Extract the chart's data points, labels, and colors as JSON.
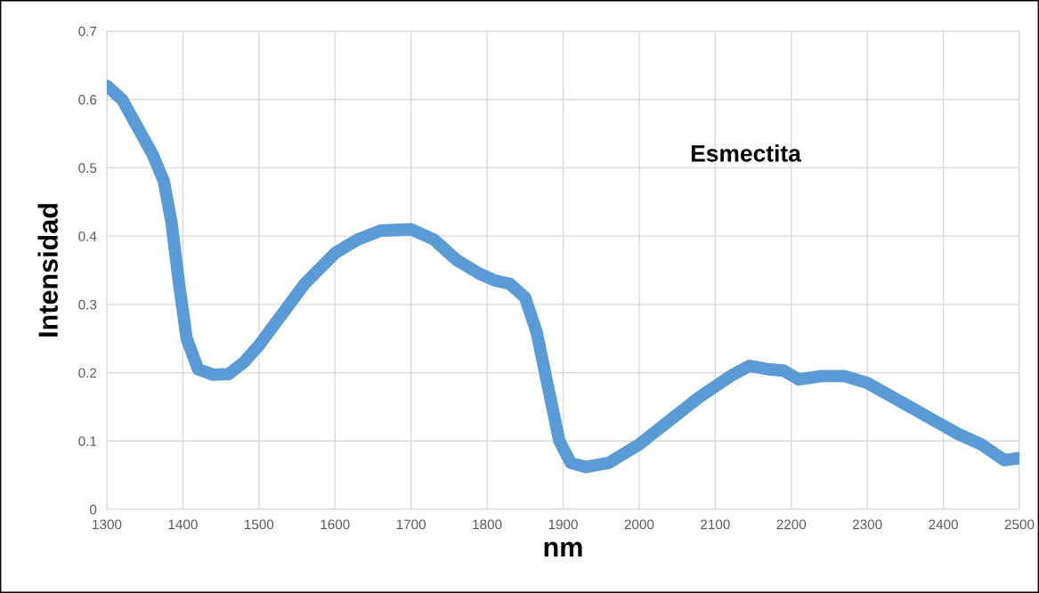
{
  "chart_data": {
    "type": "line",
    "xlabel": "nm",
    "ylabel": "Intensidad",
    "annotations": [
      "Esmectita"
    ],
    "x": [
      1300,
      1320,
      1340,
      1360,
      1375,
      1385,
      1395,
      1405,
      1420,
      1440,
      1460,
      1480,
      1500,
      1530,
      1560,
      1600,
      1630,
      1660,
      1700,
      1730,
      1760,
      1790,
      1810,
      1830,
      1850,
      1865,
      1880,
      1895,
      1910,
      1930,
      1960,
      2000,
      2040,
      2080,
      2120,
      2145,
      2170,
      2190,
      2210,
      2240,
      2270,
      2300,
      2340,
      2380,
      2420,
      2450,
      2480,
      2500
    ],
    "series": [
      {
        "color": "#5b9bd5",
        "values": [
          0.62,
          0.6,
          0.56,
          0.52,
          0.48,
          0.42,
          0.33,
          0.25,
          0.205,
          0.197,
          0.198,
          0.215,
          0.24,
          0.285,
          0.33,
          0.375,
          0.395,
          0.408,
          0.41,
          0.395,
          0.365,
          0.345,
          0.335,
          0.33,
          0.31,
          0.26,
          0.18,
          0.1,
          0.068,
          0.062,
          0.068,
          0.095,
          0.13,
          0.165,
          0.195,
          0.21,
          0.205,
          0.203,
          0.19,
          0.195,
          0.195,
          0.185,
          0.16,
          0.135,
          0.11,
          0.095,
          0.072,
          0.075
        ]
      }
    ],
    "xlim": [
      1300,
      2500
    ],
    "xticks": [
      1300,
      1400,
      1500,
      1600,
      1700,
      1800,
      1900,
      2000,
      2100,
      2200,
      2300,
      2400,
      2500
    ],
    "ylim": [
      0,
      0.7
    ],
    "yticks": [
      0,
      0.1,
      0.2,
      0.3,
      0.4,
      0.5,
      0.6,
      0.7
    ],
    "grid": true,
    "line_style": "solid",
    "legend": false
  }
}
